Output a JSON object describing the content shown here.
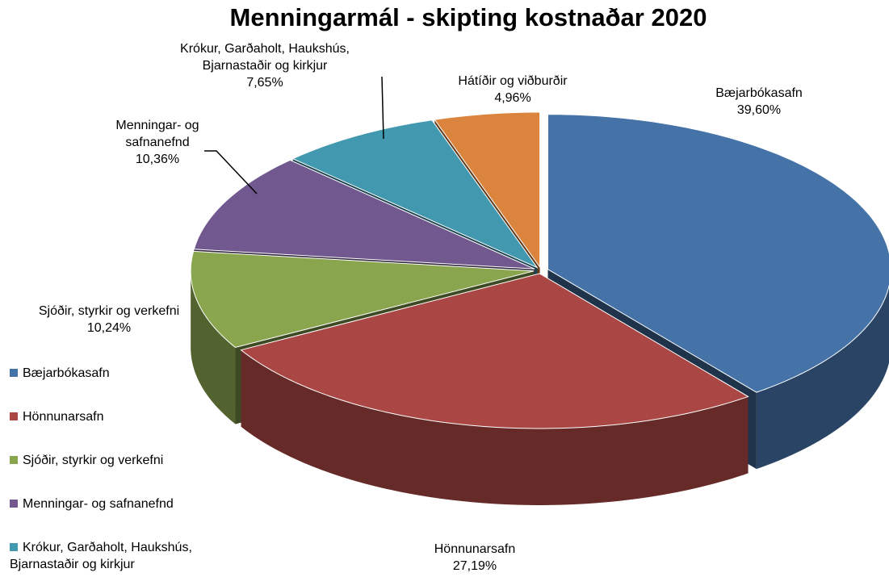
{
  "chart_data": {
    "type": "pie3d",
    "title": "Menningarmál - skipting kostnaðar 2020",
    "categories": [
      "Bæjarbókasafn",
      "Hönnunarsafn",
      "Sjóðir, styrkir og verkefni",
      "Menningar- og safnanefnd",
      "Krókur, Garðaholt, Haukshús, Bjarnastaðir og kirkjur",
      "Hátíðir og viðburðir"
    ],
    "values": [
      39.6,
      27.19,
      10.24,
      10.36,
      7.65,
      4.96
    ],
    "value_labels": [
      "39,60%",
      "27,19%",
      "10,24%",
      "10,36%",
      "7,65%",
      "4,96%"
    ],
    "colors": [
      "#4572a7",
      "#aa4643",
      "#89a54e",
      "#71588f",
      "#4198af",
      "#db843d"
    ],
    "legend": "left"
  }
}
